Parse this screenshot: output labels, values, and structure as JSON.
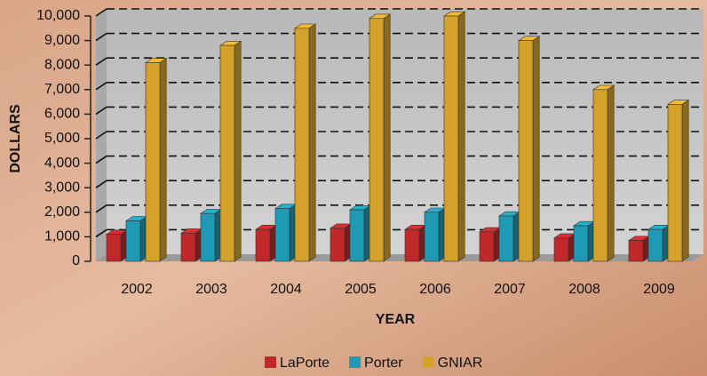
{
  "chart_data": {
    "type": "bar3d",
    "x_label": "YEAR",
    "y_label": "DOLLARS",
    "categories": [
      "2002",
      "2003",
      "2004",
      "2005",
      "2006",
      "2007",
      "2008",
      "2009"
    ],
    "series": [
      {
        "name": "LaPorte",
        "color": "#c0282a",
        "values": [
          1100,
          1150,
          1300,
          1350,
          1300,
          1200,
          950,
          850
        ]
      },
      {
        "name": "Porter",
        "color": "#1f9ab5",
        "values": [
          1650,
          1950,
          2150,
          2100,
          2000,
          1850,
          1450,
          1300
        ]
      },
      {
        "name": "GNIAR",
        "color": "#d4a22a",
        "values": [
          8100,
          8800,
          9500,
          9900,
          10000,
          9000,
          7000,
          6400
        ]
      }
    ],
    "ylim": [
      0,
      10000
    ],
    "yticks": [
      0,
      {
        "value": 1000,
        "label": "1,000"
      },
      {
        "value": 2000,
        "label": "2,000"
      },
      {
        "value": 3000,
        "label": "3,000"
      },
      {
        "value": 4000,
        "label": "4,000"
      },
      {
        "value": 5000,
        "label": "5,000"
      },
      {
        "value": 6000,
        "label": "6,000"
      },
      {
        "value": 7000,
        "label": "7,000"
      },
      {
        "value": 8000,
        "label": "8,000"
      },
      {
        "value": 9000,
        "label": "9,000"
      },
      {
        "value": 10000,
        "label": "10,000"
      }
    ],
    "grid": true,
    "legend": "bottom"
  }
}
